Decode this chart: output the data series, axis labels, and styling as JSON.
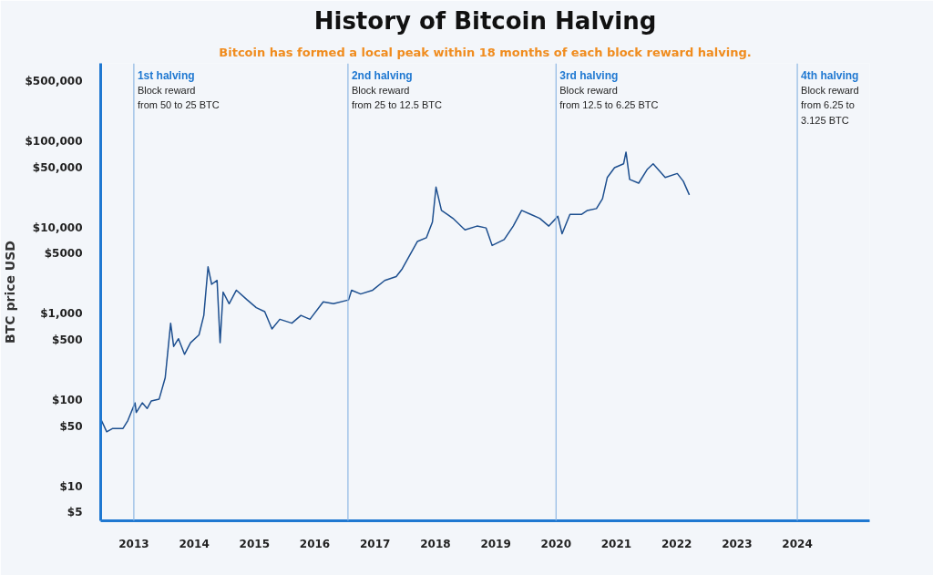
{
  "chart_data": {
    "type": "line",
    "title": "History of Bitcoin Halving",
    "subtitle": "Bitcoin has formed a local peak within 18 months of each block reward halving.",
    "ylabel": "BTC price USD",
    "x": [
      2012.45,
      2012.55,
      2012.65,
      2012.82,
      2012.9,
      2013.02,
      2013.04,
      2013.14,
      2013.22,
      2013.29,
      2013.42,
      2013.52,
      2013.61,
      2013.66,
      2013.74,
      2013.84,
      2013.94,
      2014.08,
      2014.16,
      2014.23,
      2014.29,
      2014.38,
      2014.43,
      2014.48,
      2014.58,
      2014.7,
      2014.88,
      2015.03,
      2015.17,
      2015.29,
      2015.42,
      2015.62,
      2015.77,
      2015.92,
      2016.14,
      2016.31,
      2016.56,
      2016.61,
      2016.76,
      2016.96,
      2017.16,
      2017.35,
      2017.45,
      2017.7,
      2017.85,
      2017.95,
      2018.01,
      2018.1,
      2018.2,
      2018.29,
      2018.49,
      2018.69,
      2018.84,
      2018.94,
      2019.14,
      2019.29,
      2019.43,
      2019.58,
      2019.73,
      2019.88,
      2020.03,
      2020.1,
      2020.23,
      2020.42,
      2020.52,
      2020.67,
      2020.77,
      2020.85,
      2020.97,
      2021.12,
      2021.16,
      2021.22,
      2021.37,
      2021.51,
      2021.61,
      2021.81,
      2022.01,
      2022.11,
      2022.21
    ],
    "series": [
      {
        "color": "#1d4f8f",
        "values": [
          61,
          43,
          47,
          47,
          58,
          93,
          72,
          93,
          80,
          98,
          103,
          182,
          780,
          419,
          515,
          340,
          463,
          571,
          960,
          3510,
          2200,
          2440,
          463,
          1790,
          1310,
          1880,
          1450,
          1180,
          1060,
          667,
          865,
          780,
          960,
          865,
          1380,
          1310,
          1450,
          1880,
          1700,
          1880,
          2440,
          2700,
          3330,
          6890,
          7620,
          11560,
          29400,
          15800,
          14200,
          12800,
          9400,
          10400,
          9900,
          6200,
          7260,
          10400,
          15800,
          14200,
          12800,
          10400,
          13500,
          8470,
          14200,
          14200,
          15800,
          16600,
          21600,
          38100,
          49400,
          54800,
          74800,
          36100,
          32700,
          47000,
          54800,
          38100,
          42300,
          34400,
          23900
        ]
      }
    ],
    "log": "y",
    "xlim": [
      2012.45,
      2025.2
    ],
    "ylim": [
      4,
      800000
    ],
    "xticks": [
      2013,
      2014,
      2015,
      2016,
      2017,
      2018,
      2019,
      2020,
      2021,
      2022,
      2023,
      2024
    ],
    "yticks": [
      {
        "value": 5,
        "label": "$5"
      },
      {
        "value": 10,
        "label": "$10"
      },
      {
        "value": 50,
        "label": "$50"
      },
      {
        "value": 100,
        "label": "$100"
      },
      {
        "value": 500,
        "label": "$500"
      },
      {
        "value": 1000,
        "label": "$1,000"
      },
      {
        "value": 5000,
        "label": "$5000"
      },
      {
        "value": 10000,
        "label": "$10,000"
      },
      {
        "value": 50000,
        "label": "$50,000"
      },
      {
        "value": 100000,
        "label": "$100,000"
      },
      {
        "value": 500000,
        "label": "$500,000"
      }
    ],
    "ref_lines": [
      {
        "axis": "x",
        "value": 2013.0,
        "label": "1st halving\nBlock reward\nfrom 50 to 25 BTC",
        "color": "#8fb8e3"
      },
      {
        "axis": "x",
        "value": 2016.55,
        "label": "2nd halving\nBlock reward\nfrom 25 to 12.5 BTC",
        "color": "#8fb8e3"
      },
      {
        "axis": "x",
        "value": 2020.0,
        "label": "3rd halving\nBlock reward\nfrom 12.5 to 6.25 BTC",
        "color": "#8fb8e3"
      },
      {
        "axis": "x",
        "value": 2024.0,
        "label": "4th halving\nBlock reward\nfrom 6.25 to 3.125 BTC",
        "color": "#8fb8e3"
      }
    ],
    "grid": false
  }
}
